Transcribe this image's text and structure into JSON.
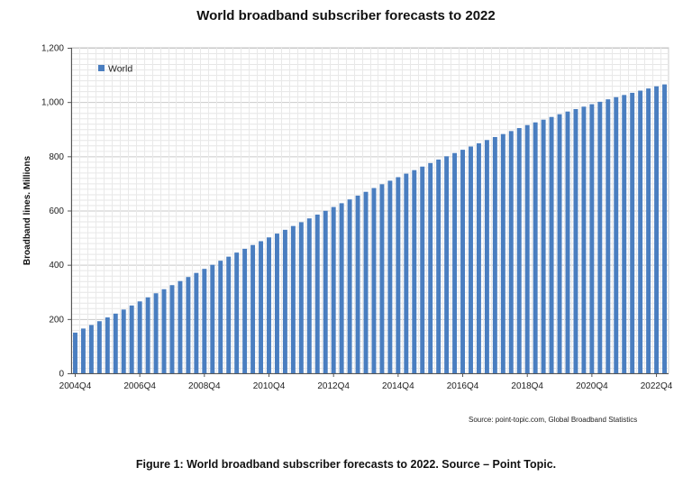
{
  "chart_data": {
    "type": "bar",
    "title": "World broadband subscriber forecasts to 2022",
    "ylabel": "Broadband lines. Millions",
    "xlabel": "",
    "ylim": [
      0,
      1200
    ],
    "yticks": [
      "0",
      "200",
      "400",
      "600",
      "800",
      "1,000",
      "1,200"
    ],
    "xtick_labels": [
      "2004Q4",
      "2006Q4",
      "2008Q4",
      "2010Q4",
      "2012Q4",
      "2014Q4",
      "2016Q4",
      "2018Q4",
      "2020Q4",
      "2022Q4"
    ],
    "grid": true,
    "legend_position": "top-left",
    "bar_color": "#4a7ec0",
    "series": [
      {
        "name": "World",
        "values": [
          150,
          165,
          178,
          192,
          206,
          220,
          235,
          250,
          265,
          280,
          295,
          310,
          325,
          340,
          355,
          370,
          385,
          400,
          415,
          430,
          445,
          459,
          473,
          487,
          501,
          515,
          529,
          543,
          557,
          571,
          585,
          599,
          613,
          627,
          641,
          655,
          669,
          683,
          697,
          710,
          723,
          736,
          749,
          762,
          775,
          788,
          800,
          812,
          824,
          836,
          848,
          860,
          871,
          882,
          893,
          904,
          915,
          925,
          935,
          945,
          955,
          965,
          974,
          983,
          992,
          1001,
          1010,
          1018,
          1026,
          1034,
          1042,
          1050,
          1058,
          1065
        ]
      }
    ]
  },
  "source_text": "Source:  point-topic.com,  Global Broadband Statistics",
  "caption": "Figure 1: World broadband subscriber forecasts to 2022. Source – Point Topic."
}
